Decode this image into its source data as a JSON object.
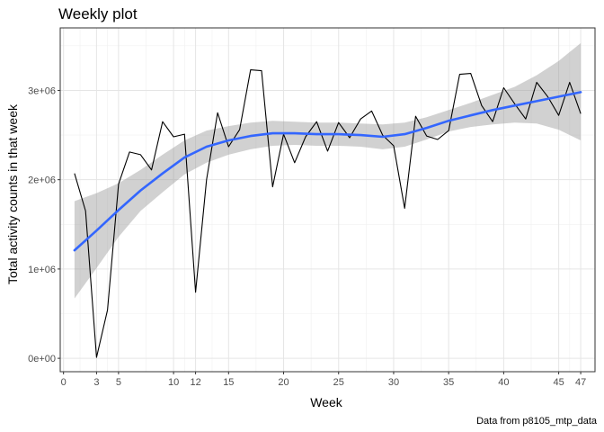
{
  "chart_data": {
    "type": "line",
    "title": "Weekly plot",
    "xlabel": "Week",
    "ylabel": "Total activity counts in that week",
    "caption": "Data from p8105_mtp_data",
    "xlim": [
      -0.3,
      48.3
    ],
    "ylim": [
      -150000,
      3700000
    ],
    "x_ticks": [
      0,
      3,
      5,
      10,
      12,
      15,
      20,
      25,
      30,
      35,
      40,
      45,
      47
    ],
    "x_tick_labels": [
      "0",
      "3",
      "5",
      "10",
      "12",
      "15",
      "20",
      "25",
      "30",
      "35",
      "40",
      "45",
      "47"
    ],
    "y_ticks": [
      0,
      1000000,
      2000000,
      3000000
    ],
    "y_tick_labels": [
      "0e+00",
      "1e+06",
      "2e+06",
      "3e+06"
    ],
    "grid": true,
    "series": [
      {
        "kind": "raw",
        "color": "#000000",
        "x": [
          1,
          2,
          3,
          4,
          5,
          6,
          7,
          8,
          9,
          10,
          11,
          12,
          13,
          14,
          15,
          16,
          17,
          18,
          19,
          20,
          21,
          22,
          23,
          24,
          25,
          26,
          27,
          28,
          29,
          30,
          31,
          32,
          33,
          34,
          35,
          36,
          37,
          38,
          39,
          40,
          41,
          42,
          43,
          44,
          45,
          46,
          47
        ],
        "y": [
          2070000,
          1650000,
          10000,
          540000,
          1950000,
          2310000,
          2280000,
          2110000,
          2650000,
          2480000,
          2510000,
          740000,
          2000000,
          2750000,
          2370000,
          2560000,
          3230000,
          3220000,
          1920000,
          2510000,
          2190000,
          2480000,
          2650000,
          2320000,
          2640000,
          2470000,
          2680000,
          2770000,
          2500000,
          2380000,
          1680000,
          2710000,
          2490000,
          2450000,
          2550000,
          3180000,
          3190000,
          2830000,
          2650000,
          3030000,
          2850000,
          2680000,
          3090000,
          2930000,
          2720000,
          3090000,
          2740000
        ]
      },
      {
        "kind": "smooth",
        "color": "#3366FF",
        "x": [
          1,
          3,
          5,
          7,
          9,
          11,
          13,
          15,
          17,
          19,
          21,
          23,
          25,
          27,
          29,
          31,
          33,
          35,
          37,
          39,
          41,
          43,
          45,
          47
        ],
        "y": [
          1210000,
          1430000,
          1660000,
          1880000,
          2070000,
          2250000,
          2370000,
          2440000,
          2490000,
          2520000,
          2520000,
          2510000,
          2510000,
          2500000,
          2480000,
          2510000,
          2580000,
          2660000,
          2720000,
          2780000,
          2830000,
          2880000,
          2930000,
          2980000
        ],
        "ci_upper": [
          1760000,
          1850000,
          1960000,
          2110000,
          2280000,
          2440000,
          2550000,
          2600000,
          2640000,
          2660000,
          2650000,
          2640000,
          2640000,
          2630000,
          2620000,
          2640000,
          2700000,
          2780000,
          2860000,
          2950000,
          3040000,
          3170000,
          3330000,
          3530000
        ],
        "ci_lower": [
          670000,
          1010000,
          1360000,
          1650000,
          1860000,
          2060000,
          2190000,
          2280000,
          2340000,
          2380000,
          2390000,
          2380000,
          2380000,
          2370000,
          2340000,
          2370000,
          2450000,
          2540000,
          2590000,
          2620000,
          2640000,
          2630000,
          2560000,
          2440000
        ]
      }
    ]
  }
}
